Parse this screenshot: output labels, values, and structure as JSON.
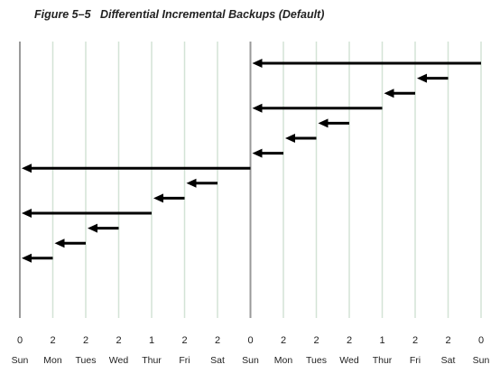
{
  "title": "Figure 5–5   Differential Incremental Backups (Default)",
  "days": [
    {
      "day": "Sun",
      "level": "0"
    },
    {
      "day": "Mon",
      "level": "2"
    },
    {
      "day": "Tues",
      "level": "2"
    },
    {
      "day": "Wed",
      "level": "2"
    },
    {
      "day": "Thur",
      "level": "1"
    },
    {
      "day": "Fri",
      "level": "2"
    },
    {
      "day": "Sat",
      "level": "2"
    },
    {
      "day": "Sun",
      "level": "0"
    },
    {
      "day": "Mon",
      "level": "2"
    },
    {
      "day": "Tues",
      "level": "2"
    },
    {
      "day": "Wed",
      "level": "2"
    },
    {
      "day": "Thur",
      "level": "1"
    },
    {
      "day": "Fri",
      "level": "2"
    },
    {
      "day": "Sat",
      "level": "2"
    },
    {
      "day": "Sun",
      "level": "0"
    }
  ],
  "arrows": [
    {
      "from_day": 14,
      "to_day": 7
    },
    {
      "from_day": 13,
      "to_day": 12
    },
    {
      "from_day": 12,
      "to_day": 11
    },
    {
      "from_day": 11,
      "to_day": 7
    },
    {
      "from_day": 10,
      "to_day": 9
    },
    {
      "from_day": 9,
      "to_day": 8
    },
    {
      "from_day": 8,
      "to_day": 7
    },
    {
      "from_day": 7,
      "to_day": 0
    },
    {
      "from_day": 6,
      "to_day": 5
    },
    {
      "from_day": 5,
      "to_day": 4
    },
    {
      "from_day": 4,
      "to_day": 0
    },
    {
      "from_day": 3,
      "to_day": 2
    },
    {
      "from_day": 2,
      "to_day": 1
    },
    {
      "from_day": 1,
      "to_day": 0
    }
  ],
  "colors": {
    "gridline": "#d3e3d6",
    "full_backup_line": "#9a9a9a",
    "arrow": "#000000",
    "text": "#222222"
  }
}
